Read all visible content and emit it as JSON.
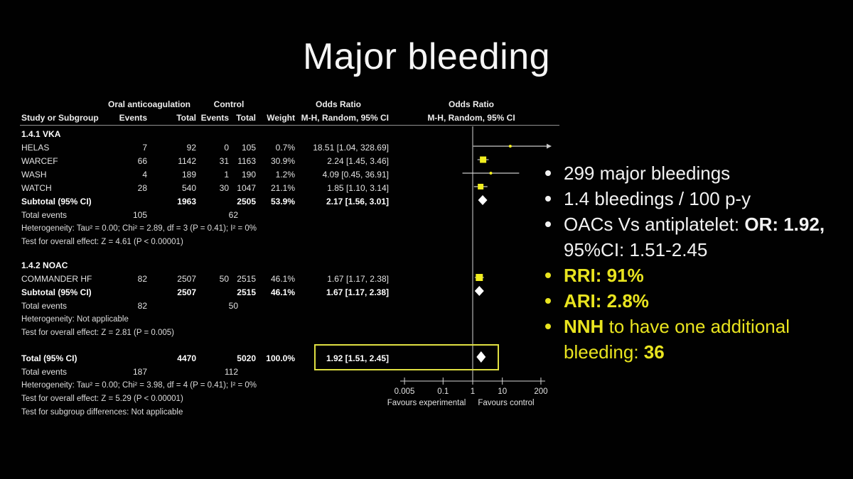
{
  "slide": {
    "title": "Major bleeding"
  },
  "colors": {
    "background": "#010101",
    "text_white": "#f2f2f2",
    "accent_yellow": "#e9e41f",
    "marker_yellow": "#f2ee1f",
    "ci_line": "#c9c9c9",
    "diamond": "#ffffff",
    "highlight_box": "#e0e042"
  },
  "forest": {
    "header": {
      "group1": "Oral anticoagulation",
      "group2": "Control",
      "or_text_title": "Odds Ratio",
      "or_plot_title": "Odds Ratio",
      "study": "Study or Subgroup",
      "events": "Events",
      "total": "Total",
      "weight": "Weight",
      "method": "M-H, Random, 95% CI"
    },
    "rows": [
      {
        "kind": "section",
        "label": "1.4.1 VKA"
      },
      {
        "kind": "study",
        "study": "HELAS",
        "e1": "7",
        "t1": "92",
        "e2": "0",
        "t2": "105",
        "w": "0.7%",
        "ci_text": "18.51 [1.04, 328.69]",
        "est": 18.51,
        "lo": 1.04,
        "hi": 328.69,
        "marker": "dot",
        "msize": 4
      },
      {
        "kind": "study",
        "study": "WARCEF",
        "e1": "66",
        "t1": "1142",
        "e2": "31",
        "t2": "1163",
        "w": "30.9%",
        "ci_text": "2.24 [1.45, 3.46]",
        "est": 2.24,
        "lo": 1.45,
        "hi": 3.46,
        "marker": "square",
        "msize": 9
      },
      {
        "kind": "study",
        "study": "WASH",
        "e1": "4",
        "t1": "189",
        "e2": "1",
        "t2": "190",
        "w": "1.2%",
        "ci_text": "4.09 [0.45, 36.91]",
        "est": 4.09,
        "lo": 0.45,
        "hi": 36.91,
        "marker": "dot",
        "msize": 4
      },
      {
        "kind": "study",
        "study": "WATCH",
        "e1": "28",
        "t1": "540",
        "e2": "30",
        "t2": "1047",
        "w": "21.1%",
        "ci_text": "1.85 [1.10, 3.14]",
        "est": 1.85,
        "lo": 1.1,
        "hi": 3.14,
        "marker": "square",
        "msize": 8
      },
      {
        "kind": "subtotal",
        "study": "Subtotal (95% CI)",
        "t1": "1963",
        "t2": "2505",
        "w": "53.9%",
        "ci_text": "2.17 [1.56, 3.01]",
        "est": 2.17,
        "lo": 1.56,
        "hi": 3.01,
        "marker": "diamond"
      },
      {
        "kind": "events",
        "label": "Total events",
        "e1": "105",
        "e2": "62"
      },
      {
        "kind": "note",
        "label": "Heterogeneity: Tau² = 0.00; Chi² = 2.89, df = 3 (P = 0.41); I² = 0%"
      },
      {
        "kind": "note",
        "label": "Test for overall effect: Z = 4.61 (P < 0.00001)"
      },
      {
        "kind": "section",
        "label": "1.4.2 NOAC",
        "gap": 14
      },
      {
        "kind": "study",
        "study": "COMMANDER HF",
        "e1": "82",
        "t1": "2507",
        "e2": "50",
        "t2": "2515",
        "w": "46.1%",
        "ci_text": "1.67 [1.17, 2.38]",
        "est": 1.67,
        "lo": 1.17,
        "hi": 2.38,
        "marker": "square",
        "msize": 10
      },
      {
        "kind": "subtotal",
        "study": "Subtotal (95% CI)",
        "t1": "2507",
        "t2": "2515",
        "w": "46.1%",
        "ci_text": "1.67 [1.17, 2.38]",
        "est": 1.67,
        "lo": 1.17,
        "hi": 2.38,
        "marker": "diamond"
      },
      {
        "kind": "events",
        "label": "Total events",
        "e1": "82",
        "e2": "50"
      },
      {
        "kind": "note",
        "label": "Heterogeneity: Not applicable"
      },
      {
        "kind": "note",
        "label": "Test for overall effect: Z = 2.81 (P = 0.005)"
      },
      {
        "kind": "total",
        "study": "Total (95% CI)",
        "t1": "4470",
        "t2": "5020",
        "w": "100.0%",
        "ci_text": "1.92 [1.51, 2.45]",
        "est": 1.92,
        "lo": 1.51,
        "hi": 2.45,
        "marker": "diamond",
        "gap": 17,
        "highlight": true
      },
      {
        "kind": "events",
        "label": "Total events",
        "e1": "187",
        "e2": "112"
      },
      {
        "kind": "note",
        "label": "Heterogeneity: Tau² = 0.00; Chi² = 3.98, df = 4 (P = 0.41); I² = 0%"
      },
      {
        "kind": "note",
        "label": "Test for overall effect: Z = 5.29 (P < 0.00001)"
      },
      {
        "kind": "note",
        "label": "Test for subgroup differences: Not applicable"
      }
    ],
    "axis": {
      "ticks": [
        0.005,
        0.1,
        1,
        10,
        200
      ],
      "tick_labels": [
        "0.005",
        "0.1",
        "1",
        "10",
        "200"
      ],
      "favours_left": "Favours experimental",
      "favours_right": "Favours control"
    }
  },
  "bullets": [
    {
      "bullet": true,
      "color": "white",
      "parts": [
        {
          "t": "299 major bleedings"
        }
      ]
    },
    {
      "bullet": true,
      "color": "white",
      "parts": [
        {
          "t": "1.4 bleedings / 100 p-y"
        }
      ]
    },
    {
      "bullet": true,
      "color": "white",
      "parts": [
        {
          "t": "OACs Vs antiplatelet: "
        },
        {
          "t": "OR: 1.92,",
          "b": true
        }
      ]
    },
    {
      "bullet": false,
      "color": "white",
      "parts": [
        {
          "t": "95%CI: 1.51-2.45"
        }
      ]
    },
    {
      "bullet": true,
      "color": "yellow",
      "parts": [
        {
          "t": "RRI: 91%",
          "b": true
        }
      ]
    },
    {
      "bullet": true,
      "color": "yellow",
      "parts": [
        {
          "t": "ARI: 2.8%",
          "b": true
        }
      ]
    },
    {
      "bullet": true,
      "color": "yellow",
      "parts": [
        {
          "t": "NNH",
          "b": true
        },
        {
          "t": " to have one additional"
        }
      ]
    },
    {
      "bullet": false,
      "color": "yellow",
      "parts": [
        {
          "t": "bleeding: "
        },
        {
          "t": "36",
          "b": true
        }
      ]
    }
  ],
  "chart_data": {
    "type": "scatter",
    "chart_kind": "forest_plot_odds_ratio",
    "title": "Major bleeding",
    "effect_measure": "Odds Ratio, M-H, Random, 95% CI",
    "x_scale": "log",
    "x_ticks": [
      0.005,
      0.1,
      1,
      10,
      200
    ],
    "x_label_left": "Favours experimental",
    "x_label_right": "Favours control",
    "groups": [
      {
        "name": "1.4.1 VKA",
        "studies": [
          {
            "study": "HELAS",
            "oac_events": 7,
            "oac_total": 92,
            "ctrl_events": 0,
            "ctrl_total": 105,
            "weight_pct": 0.7,
            "or": 18.51,
            "ci": [
              1.04,
              328.69
            ]
          },
          {
            "study": "WARCEF",
            "oac_events": 66,
            "oac_total": 1142,
            "ctrl_events": 31,
            "ctrl_total": 1163,
            "weight_pct": 30.9,
            "or": 2.24,
            "ci": [
              1.45,
              3.46
            ]
          },
          {
            "study": "WASH",
            "oac_events": 4,
            "oac_total": 189,
            "ctrl_events": 1,
            "ctrl_total": 190,
            "weight_pct": 1.2,
            "or": 4.09,
            "ci": [
              0.45,
              36.91
            ]
          },
          {
            "study": "WATCH",
            "oac_events": 28,
            "oac_total": 540,
            "ctrl_events": 30,
            "ctrl_total": 1047,
            "weight_pct": 21.1,
            "or": 1.85,
            "ci": [
              1.1,
              3.14
            ]
          }
        ],
        "subtotal": {
          "oac_total": 1963,
          "ctrl_total": 2505,
          "weight_pct": 53.9,
          "or": 2.17,
          "ci": [
            1.56,
            3.01
          ],
          "total_events": [
            105,
            62
          ],
          "heterogeneity": "Tau² = 0.00; Chi² = 2.89, df = 3 (P = 0.41); I² = 0%",
          "overall_effect": "Z = 4.61 (P < 0.00001)"
        }
      },
      {
        "name": "1.4.2 NOAC",
        "studies": [
          {
            "study": "COMMANDER HF",
            "oac_events": 82,
            "oac_total": 2507,
            "ctrl_events": 50,
            "ctrl_total": 2515,
            "weight_pct": 46.1,
            "or": 1.67,
            "ci": [
              1.17,
              2.38
            ]
          }
        ],
        "subtotal": {
          "oac_total": 2507,
          "ctrl_total": 2515,
          "weight_pct": 46.1,
          "or": 1.67,
          "ci": [
            1.17,
            2.38
          ],
          "total_events": [
            82,
            50
          ],
          "heterogeneity": "Not applicable",
          "overall_effect": "Z = 2.81 (P = 0.005)"
        }
      }
    ],
    "total": {
      "oac_total": 4470,
      "ctrl_total": 5020,
      "weight_pct": 100.0,
      "or": 1.92,
      "ci": [
        1.51,
        2.45
      ],
      "total_events": [
        187,
        112
      ],
      "heterogeneity": "Tau² = 0.00; Chi² = 3.98, df = 4 (P = 0.41); I² = 0%",
      "overall_effect": "Z = 5.29 (P < 0.00001)",
      "subgroup_differences": "Not applicable"
    }
  }
}
